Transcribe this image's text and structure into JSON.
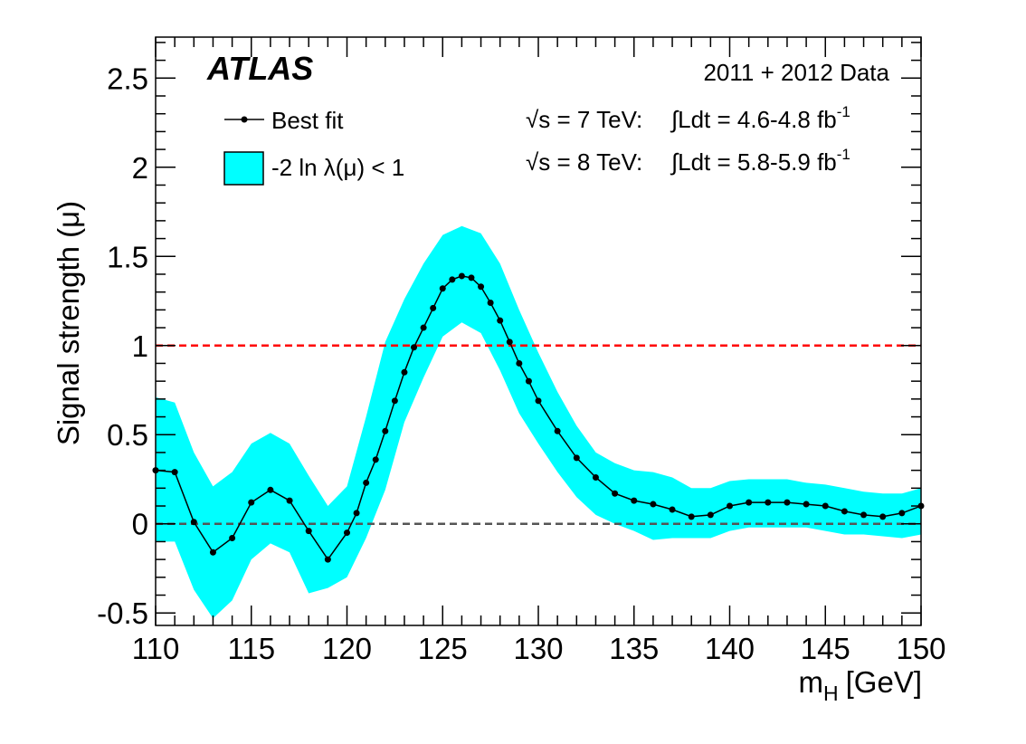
{
  "chart_data": {
    "type": "line",
    "experiment_label": "ATLAS",
    "info_lines": {
      "data": "2011 + 2012 Data",
      "l7_sqrt": "√s = 7 TeV:",
      "l7_integral": "∫Ldt = 4.6-4.8 fb",
      "l7_exp": "-1",
      "l8_sqrt": "√s = 8 TeV:",
      "l8_integral": "∫Ldt = 5.8-5.9 fb",
      "l8_exp": "-1"
    },
    "ylabel": "Signal strength (μ)",
    "xlabel_main": "m",
    "xlabel_sub": "H",
    "xlabel_unit": "[GeV]",
    "xlim": [
      110,
      150
    ],
    "ylim": [
      -0.57,
      2.73
    ],
    "x_ticks": [
      "110",
      "115",
      "120",
      "125",
      "130",
      "135",
      "140",
      "145",
      "150"
    ],
    "y_ticks": [
      "-0.5",
      "0",
      "0.5",
      "1",
      "1.5",
      "2",
      "2.5"
    ],
    "y_tick_values": [
      -0.5,
      0,
      0.5,
      1,
      1.5,
      2,
      2.5
    ],
    "x_tick_values": [
      110,
      115,
      120,
      125,
      130,
      135,
      140,
      145,
      150
    ],
    "legend": {
      "best_fit": "Best fit",
      "band": "-2 ln λ(μ) < 1"
    },
    "reference_lines": [
      {
        "y": 1,
        "color": "#ff0000"
      },
      {
        "y": 0,
        "color": "#555555"
      }
    ],
    "colors": {
      "band": "#00ffff",
      "line": "#000000"
    },
    "best_fit": {
      "x": [
        110,
        111,
        112,
        113,
        114,
        115,
        116,
        117,
        118,
        119,
        120,
        120.5,
        121,
        121.5,
        122,
        122.5,
        123,
        123.5,
        124,
        124.5,
        125,
        125.5,
        126,
        126.5,
        127,
        127.5,
        128,
        128.5,
        129,
        129.5,
        130,
        131,
        132,
        133,
        134,
        135,
        136,
        137,
        138,
        139,
        140,
        141,
        142,
        143,
        144,
        145,
        146,
        147,
        148,
        149,
        150
      ],
      "y": [
        0.3,
        0.29,
        0.01,
        -0.16,
        -0.08,
        0.12,
        0.19,
        0.13,
        -0.04,
        -0.2,
        -0.05,
        0.06,
        0.23,
        0.36,
        0.52,
        0.69,
        0.85,
        0.99,
        1.1,
        1.21,
        1.32,
        1.37,
        1.39,
        1.38,
        1.33,
        1.24,
        1.14,
        1.02,
        0.9,
        0.8,
        0.69,
        0.52,
        0.37,
        0.26,
        0.17,
        0.13,
        0.11,
        0.08,
        0.04,
        0.05,
        0.1,
        0.12,
        0.12,
        0.12,
        0.11,
        0.1,
        0.07,
        0.05,
        0.04,
        0.06,
        0.1
      ]
    },
    "band": {
      "x": [
        110,
        111,
        112,
        113,
        114,
        115,
        116,
        117,
        118,
        119,
        120,
        121,
        122,
        123,
        124,
        125,
        126,
        127,
        128,
        129,
        130,
        131,
        132,
        133,
        134,
        135,
        136,
        137,
        138,
        139,
        140,
        141,
        142,
        143,
        144,
        145,
        146,
        147,
        148,
        149,
        150
      ],
      "upper": [
        0.71,
        0.68,
        0.4,
        0.21,
        0.29,
        0.45,
        0.51,
        0.45,
        0.27,
        0.1,
        0.21,
        0.6,
        1.02,
        1.26,
        1.46,
        1.62,
        1.67,
        1.63,
        1.46,
        1.2,
        0.96,
        0.74,
        0.55,
        0.4,
        0.34,
        0.3,
        0.29,
        0.26,
        0.2,
        0.2,
        0.24,
        0.25,
        0.25,
        0.25,
        0.23,
        0.22,
        0.2,
        0.18,
        0.17,
        0.17,
        0.2
      ],
      "lower": [
        -0.1,
        -0.1,
        -0.37,
        -0.53,
        -0.43,
        -0.2,
        -0.11,
        -0.16,
        -0.39,
        -0.36,
        -0.3,
        -0.08,
        0.19,
        0.57,
        0.82,
        1.05,
        1.13,
        1.07,
        0.86,
        0.62,
        0.45,
        0.29,
        0.15,
        0.05,
        0.0,
        -0.04,
        -0.09,
        -0.08,
        -0.08,
        -0.08,
        -0.04,
        -0.02,
        -0.02,
        -0.02,
        -0.02,
        -0.04,
        -0.06,
        -0.06,
        -0.07,
        -0.08,
        -0.06
      ]
    }
  }
}
